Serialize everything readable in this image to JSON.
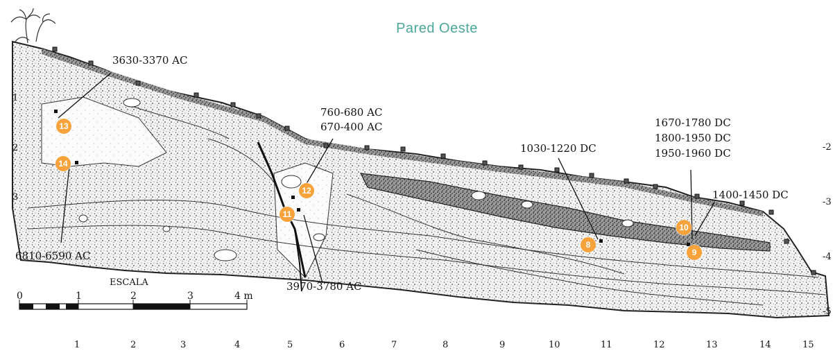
{
  "title": "Pared Oeste",
  "dates": {
    "d13": "3630-3370 AC",
    "d12a": "760-680 AC",
    "d12b": "670-400 AC",
    "d14": "6810-6590 AC",
    "d11": "3970-3780 AC",
    "d8": "1030-1220 DC",
    "d10a": "1670-1780 DC",
    "d10b": "1800-1950 DC",
    "d10c": "1950-1960 DC",
    "d9": "1400-1450 DC"
  },
  "markers": [
    "13",
    "14",
    "12",
    "11",
    "8",
    "10",
    "9"
  ],
  "left_ticks": [
    "1",
    "2",
    "3"
  ],
  "right_ticks": [
    "-2",
    "-3",
    "-4",
    "-5"
  ],
  "bottom_ticks": [
    "1",
    "2",
    "3",
    "4",
    "5",
    "6",
    "7",
    "8",
    "9",
    "10",
    "11",
    "12",
    "13",
    "14",
    "15"
  ],
  "scale": {
    "label": "ESCALA",
    "ticks": [
      "0",
      "1",
      "2",
      "3",
      "4 m"
    ]
  },
  "colors": {
    "title": "#4aa89a",
    "marker": "#f7a23a",
    "outline": "#222222"
  },
  "icons": [
    "palm-tree-icon"
  ]
}
